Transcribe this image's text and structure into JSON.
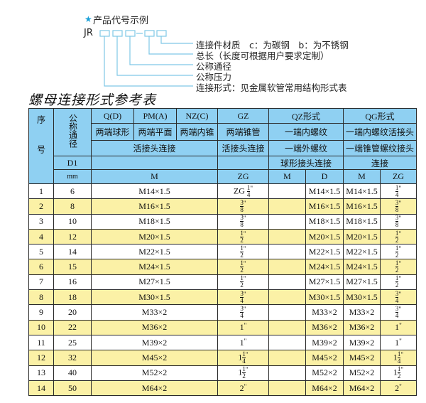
{
  "legend": {
    "star_icon": "star-icon",
    "title": "产品代号示例",
    "prefix": "JR",
    "labels": [
      "连接件材质　c：为碳钢　b：为不锈钢",
      "总长（长度可根据用户要求定制）",
      "公称通径",
      "公称压力",
      "连接形式：见金属软管常用结构形式表"
    ],
    "line_color": "#7fc8e6"
  },
  "table_title": "螺母连接形式参考表",
  "header": {
    "seq": "序号",
    "nominal": "公称通径",
    "q": "Q(D)",
    "pm": "PM(A)",
    "nz": "NZ(C)",
    "gz": "GZ",
    "qz": "QZ形式",
    "qg": "QG形式",
    "q2": "两端球形",
    "pm2": "两端平面",
    "nz2": "两端内锥",
    "gz2": "两端锥管",
    "qz2": "一端内螺纹",
    "qg2": "一端内螺纹活接头",
    "union": "活接头连接",
    "gz3": "活接头连接",
    "qz3": "一端外螺纹",
    "qg3": "一端锥管螺纹接头",
    "d1": "D1",
    "qz4": "球形接头连接",
    "qg4": "连接",
    "mm": "mm",
    "m": "M",
    "zg": "ZG",
    "qz_m": "M",
    "qz_d": "D",
    "qg_m": "M",
    "qg_zg": "ZG"
  },
  "colors": {
    "header": "#8fd0f2",
    "alt_row": "#fbf1a6"
  },
  "rows": [
    {
      "no": "1",
      "dn": "6",
      "m": "M14×1.5",
      "gz": {
        "pre": "ZG ",
        "whole": "",
        "num": "1",
        "den": "4"
      },
      "qz_m": "",
      "qz_d": "M14×1.5",
      "qg_m": "M14×1.5",
      "qg_zg": {
        "whole": "",
        "num": "1",
        "den": "4"
      }
    },
    {
      "no": "2",
      "dn": "8",
      "m": "M16×1.5",
      "gz": {
        "whole": "",
        "num": "3",
        "den": "8"
      },
      "qz_m": "",
      "qz_d": "M16×1.5",
      "qg_m": "M16×1.5",
      "qg_zg": {
        "whole": "",
        "num": "3",
        "den": "8"
      }
    },
    {
      "no": "3",
      "dn": "10",
      "m": "M18×1.5",
      "gz": {
        "whole": "",
        "num": "3",
        "den": "8"
      },
      "qz_m": "",
      "qz_d": "M18×1.5",
      "qg_m": "M18×1.5",
      "qg_zg": {
        "whole": "",
        "num": "3",
        "den": "8"
      }
    },
    {
      "no": "4",
      "dn": "12",
      "m": "M20×1.5",
      "gz": {
        "whole": "",
        "num": "1",
        "den": "2"
      },
      "qz_m": "",
      "qz_d": "M20×1.5",
      "qg_m": "M20×1.5",
      "qg_zg": {
        "whole": "",
        "num": "1",
        "den": "2"
      }
    },
    {
      "no": "5",
      "dn": "14",
      "m": "M22×1.5",
      "gz": {
        "whole": "",
        "num": "1",
        "den": "2"
      },
      "qz_m": "",
      "qz_d": "M22×1.5",
      "qg_m": "M22×1.5",
      "qg_zg": {
        "whole": "",
        "num": "1",
        "den": "2"
      }
    },
    {
      "no": "6",
      "dn": "15",
      "m": "M24×1.5",
      "gz": {
        "whole": "",
        "num": "1",
        "den": "2"
      },
      "qz_m": "",
      "qz_d": "M24×1.5",
      "qg_m": "M24×1.5",
      "qg_zg": {
        "whole": "",
        "num": "1",
        "den": "2"
      }
    },
    {
      "no": "7",
      "dn": "16",
      "m": "M27×1.5",
      "gz": {
        "whole": "",
        "num": "1",
        "den": "2"
      },
      "qz_m": "",
      "qz_d": "M27×1.5",
      "qg_m": "M27×1.5",
      "qg_zg": {
        "whole": "",
        "num": "1",
        "den": "2"
      }
    },
    {
      "no": "8",
      "dn": "18",
      "m": "M30×1.5",
      "gz": {
        "whole": "",
        "num": "3",
        "den": "4"
      },
      "qz_m": "",
      "qz_d": "M30×1.5",
      "qg_m": "M30×1.5",
      "qg_zg": {
        "whole": "",
        "num": "3",
        "den": "4"
      }
    },
    {
      "no": "9",
      "dn": "20",
      "m": "M33×2",
      "gz": {
        "whole": "",
        "num": "3",
        "den": "4"
      },
      "qz_m": "",
      "qz_d": "M33×2",
      "qg_m": "M33×2",
      "qg_zg": {
        "whole": "",
        "num": "3",
        "den": "4"
      }
    },
    {
      "no": "10",
      "dn": "22",
      "m": "M36×2",
      "gz": {
        "whole": "1",
        "num": "",
        "den": ""
      },
      "qz_m": "",
      "qz_d": "M36×2",
      "qg_m": "M36×2",
      "qg_zg": {
        "whole": "1",
        "num": "",
        "den": ""
      }
    },
    {
      "no": "11",
      "dn": "25",
      "m": "M39×2",
      "gz": {
        "whole": "1",
        "num": "",
        "den": ""
      },
      "qz_m": "",
      "qz_d": "M39×2",
      "qg_m": "M39×2",
      "qg_zg": {
        "whole": "1",
        "num": "",
        "den": ""
      }
    },
    {
      "no": "12",
      "dn": "32",
      "m": "M45×2",
      "gz": {
        "whole": "1",
        "num": "1",
        "den": "4"
      },
      "qz_m": "",
      "qz_d": "M45×2",
      "qg_m": "M45×2",
      "qg_zg": {
        "whole": "1",
        "num": "1",
        "den": "4"
      }
    },
    {
      "no": "13",
      "dn": "40",
      "m": "M52×2",
      "gz": {
        "whole": "1",
        "num": "1",
        "den": "2"
      },
      "qz_m": "",
      "qz_d": "M52×2",
      "qg_m": "M52×2",
      "qg_zg": {
        "whole": "1",
        "num": "1",
        "den": "2"
      }
    },
    {
      "no": "14",
      "dn": "50",
      "m": "M64×2",
      "gz": {
        "whole": "2",
        "num": "",
        "den": ""
      },
      "qz_m": "",
      "qz_d": "M64×2",
      "qg_m": "M64×2",
      "qg_zg": {
        "whole": "2",
        "num": "",
        "den": ""
      }
    }
  ]
}
